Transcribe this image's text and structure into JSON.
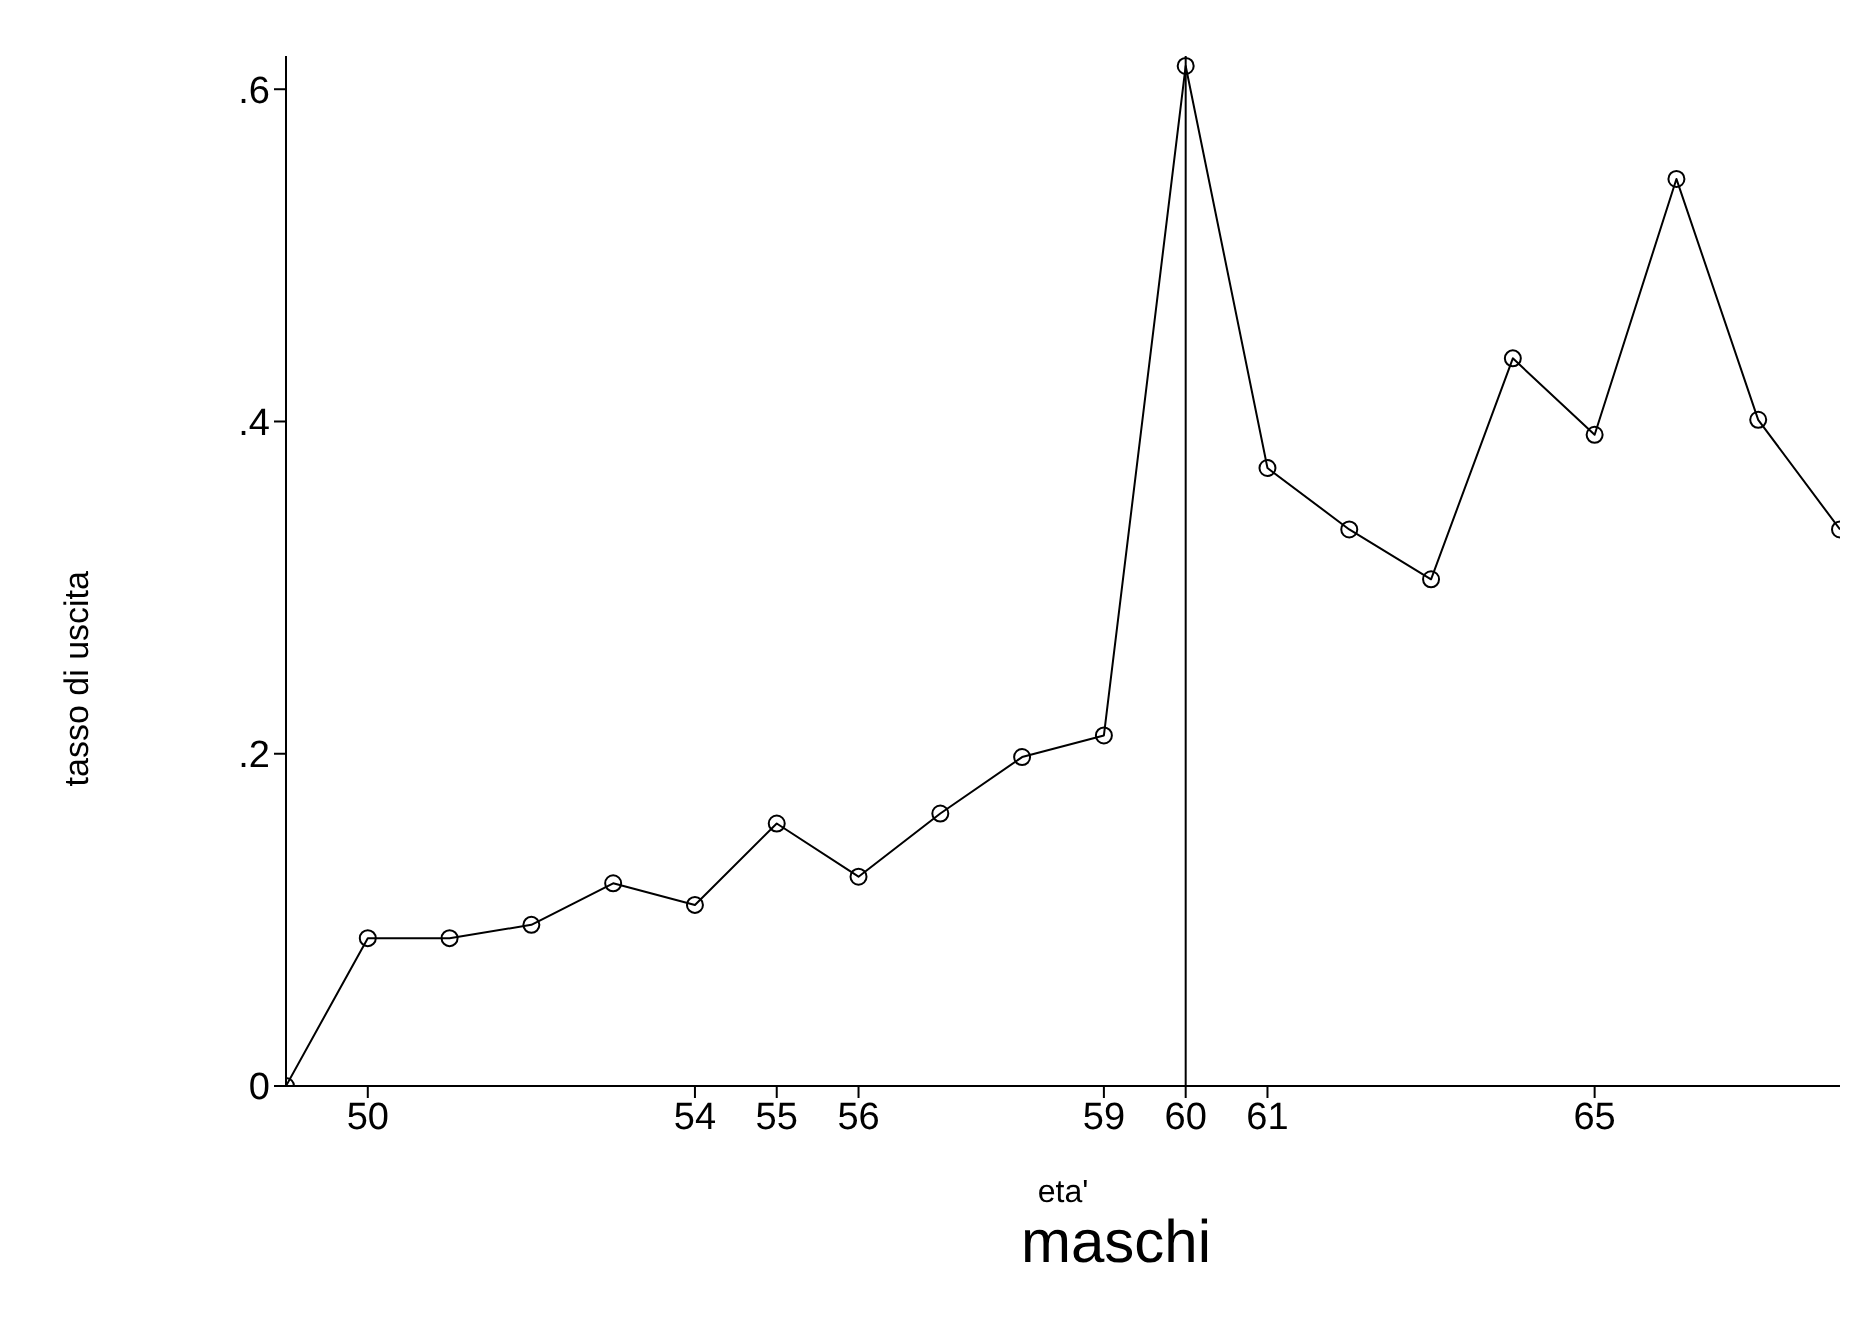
{
  "chart_data": {
    "type": "line",
    "title": "maschi",
    "xlabel": "eta'",
    "ylabel": "tasso di uscita",
    "x": [
      49,
      50,
      51,
      52,
      53,
      54,
      55,
      56,
      57,
      58,
      59,
      60,
      61,
      62,
      63,
      64,
      65,
      66,
      67,
      68
    ],
    "series": [
      {
        "color": "#000000",
        "values": [
          0,
          0.089,
          0.089,
          0.097,
          0.122,
          0.109,
          0.158,
          0.126,
          0.164,
          0.198,
          0.211,
          0.614,
          0.372,
          0.335,
          0.305,
          0.438,
          0.392,
          0.546,
          0.401,
          0.335
        ]
      }
    ],
    "xlim": [
      49,
      68
    ],
    "xticks": [
      50,
      54,
      55,
      56,
      59,
      60,
      61,
      65
    ],
    "ylim": [
      0,
      0.62
    ],
    "yticks": [
      {
        "value": 0,
        "label": "0"
      },
      {
        "value": 0.2,
        "label": ".2"
      },
      {
        "value": 0.4,
        "label": ".4"
      },
      {
        "value": 0.6,
        "label": ".6"
      }
    ],
    "ref_lines": [
      {
        "axis": "x",
        "value": 60,
        "color": "#000000"
      }
    ],
    "marker": "circle",
    "line_style": "solid",
    "grid": false,
    "legend": false
  }
}
